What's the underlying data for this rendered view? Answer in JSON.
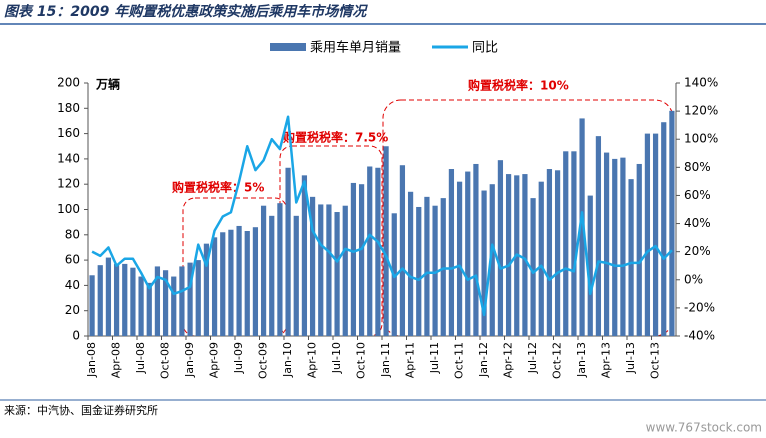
{
  "chart_data": {
    "type": "bar-line",
    "title": "图表 15：2009 年购置税优惠政策实施后乘用车市场情况",
    "y_label": "万辆",
    "source": "来源：中汽协、国金证券研究所",
    "watermark": "www.767stock.com",
    "annotations": [
      "购置税税率：5%",
      "购置税税率：7.5%",
      "购置税税率：10%"
    ],
    "legend": "top",
    "categories": [
      "Jan-08",
      null,
      null,
      "Apr-08",
      null,
      null,
      "Jul-08",
      null,
      null,
      "Oct-08",
      null,
      null,
      "Jan-09",
      null,
      null,
      "Apr-09",
      null,
      null,
      "Jul-09",
      null,
      null,
      "Oct-09",
      null,
      null,
      "Jan-10",
      null,
      null,
      "Apr-10",
      null,
      null,
      "Jul-10",
      null,
      null,
      "Oct-10",
      null,
      null,
      "Jan-11",
      null,
      null,
      "Apr-11",
      null,
      null,
      "Jul-11",
      null,
      null,
      "Oct-11",
      null,
      null,
      "Jan-12",
      null,
      null,
      "Apr-12",
      null,
      null,
      "Jul-12",
      null,
      null,
      "Oct-12",
      null,
      null,
      "Jan-13",
      null,
      null,
      "Apr-13",
      null,
      null,
      "Jul-13",
      null,
      null,
      "Oct-13",
      null,
      null
    ],
    "series": [
      {
        "name": "乘用车单月销量",
        "type": "bar",
        "color": "#4a76b0",
        "axis": "y",
        "values": [
          48,
          56,
          62,
          57,
          57,
          54,
          47,
          42,
          55,
          52,
          47,
          55,
          58,
          60,
          73,
          78,
          82,
          84,
          87,
          83,
          86,
          103,
          95,
          105,
          133,
          95,
          127,
          110,
          104,
          104,
          98,
          103,
          121,
          120,
          134,
          133,
          150,
          97,
          135,
          114,
          102,
          110,
          103,
          109,
          132,
          122,
          130,
          136,
          115,
          120,
          139,
          128,
          127,
          128,
          109,
          122,
          132,
          131,
          146,
          146,
          172,
          111,
          158,
          145,
          140,
          141,
          124,
          136,
          160,
          160,
          169,
          178
        ]
      },
      {
        "name": "同比",
        "type": "line",
        "color": "#1aa6e6",
        "axis": "y2",
        "values": [
          20,
          17,
          23,
          10,
          15,
          15,
          5,
          -6,
          2,
          0,
          -10,
          -8,
          -5,
          25,
          10,
          35,
          45,
          48,
          70,
          95,
          78,
          85,
          100,
          93,
          116,
          55,
          70,
          35,
          25,
          20,
          13,
          22,
          20,
          22,
          32,
          27,
          17,
          2,
          8,
          2,
          0,
          5,
          5,
          8,
          8,
          10,
          0,
          3,
          -25,
          25,
          8,
          10,
          18,
          15,
          5,
          10,
          0,
          5,
          8,
          6,
          48,
          -10,
          13,
          12,
          10,
          10,
          12,
          12,
          20,
          24,
          15,
          21
        ]
      }
    ],
    "ylim": [
      0,
      200
    ],
    "yticks": [
      0,
      20,
      40,
      60,
      80,
      100,
      120,
      140,
      160,
      180,
      200
    ],
    "y2lim": [
      -40,
      140
    ],
    "y2ticks": [
      {
        "value": -40,
        "label": "-40%"
      },
      {
        "value": -20,
        "label": "-20%"
      },
      {
        "value": 0,
        "label": "0%"
      },
      {
        "value": 20,
        "label": "20%"
      },
      {
        "value": 40,
        "label": "40%"
      },
      {
        "value": 60,
        "label": "60%"
      },
      {
        "value": 80,
        "label": "80%"
      },
      {
        "value": 100,
        "label": "100%"
      },
      {
        "value": 120,
        "label": "120%"
      },
      {
        "value": 140,
        "label": "140%"
      }
    ],
    "grid": false
  }
}
